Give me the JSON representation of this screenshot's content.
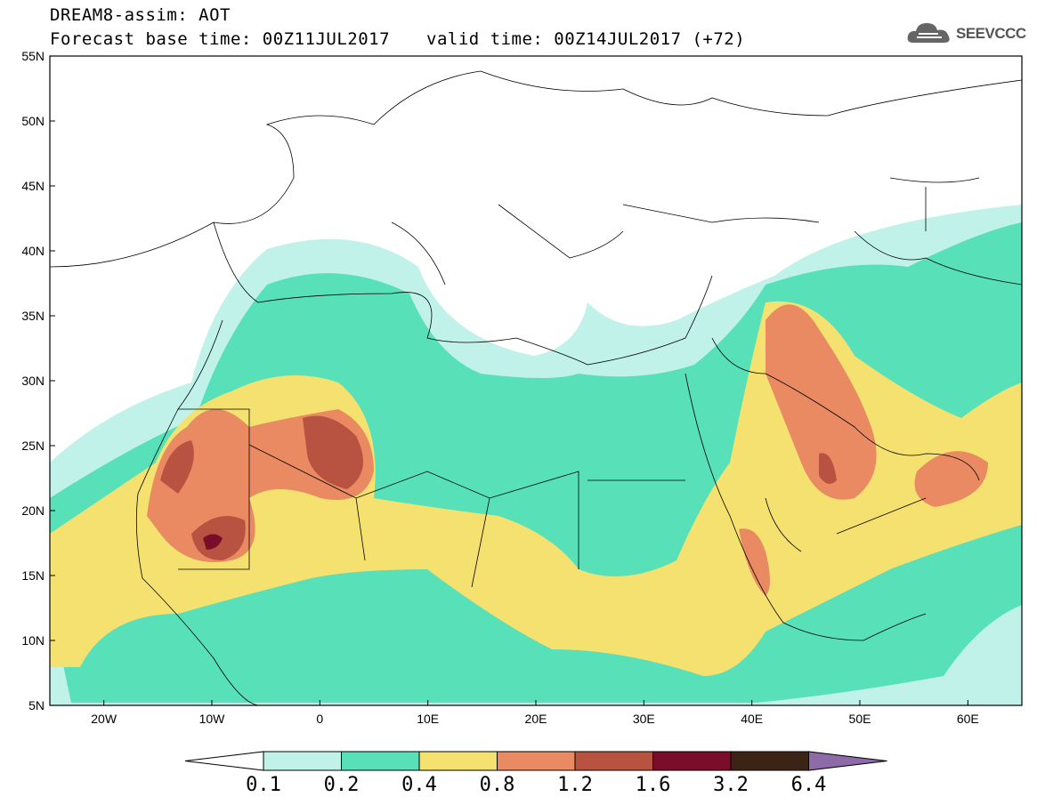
{
  "header": {
    "title": "DREAM8-assim: AOT",
    "base_time": "Forecast base time: 00Z11JUL2017",
    "valid_time": "valid time: 00Z14JUL2017 (+72)"
  },
  "logo": {
    "text": "SEEVCCC",
    "icon": "cloud-icon"
  },
  "map": {
    "lon_range": [
      -25,
      65
    ],
    "lat_range": [
      5,
      55
    ],
    "lat_ticks": [
      "5N",
      "10N",
      "15N",
      "20N",
      "25N",
      "30N",
      "35N",
      "40N",
      "45N",
      "50N",
      "55N"
    ],
    "lon_ticks": [
      "20W",
      "10W",
      "0",
      "10E",
      "20E",
      "30E",
      "40E",
      "50E",
      "60E"
    ]
  },
  "colorbar": {
    "labels": [
      "0.1",
      "0.2",
      "0.4",
      "0.8",
      "1.2",
      "1.6",
      "3.2",
      "6.4"
    ],
    "colors": [
      "#ffffff",
      "#c0f2ea",
      "#58e0b8",
      "#f5e170",
      "#e98a62",
      "#b95341",
      "#7a0d2a",
      "#3b2416",
      "#8e6aa8"
    ]
  }
}
